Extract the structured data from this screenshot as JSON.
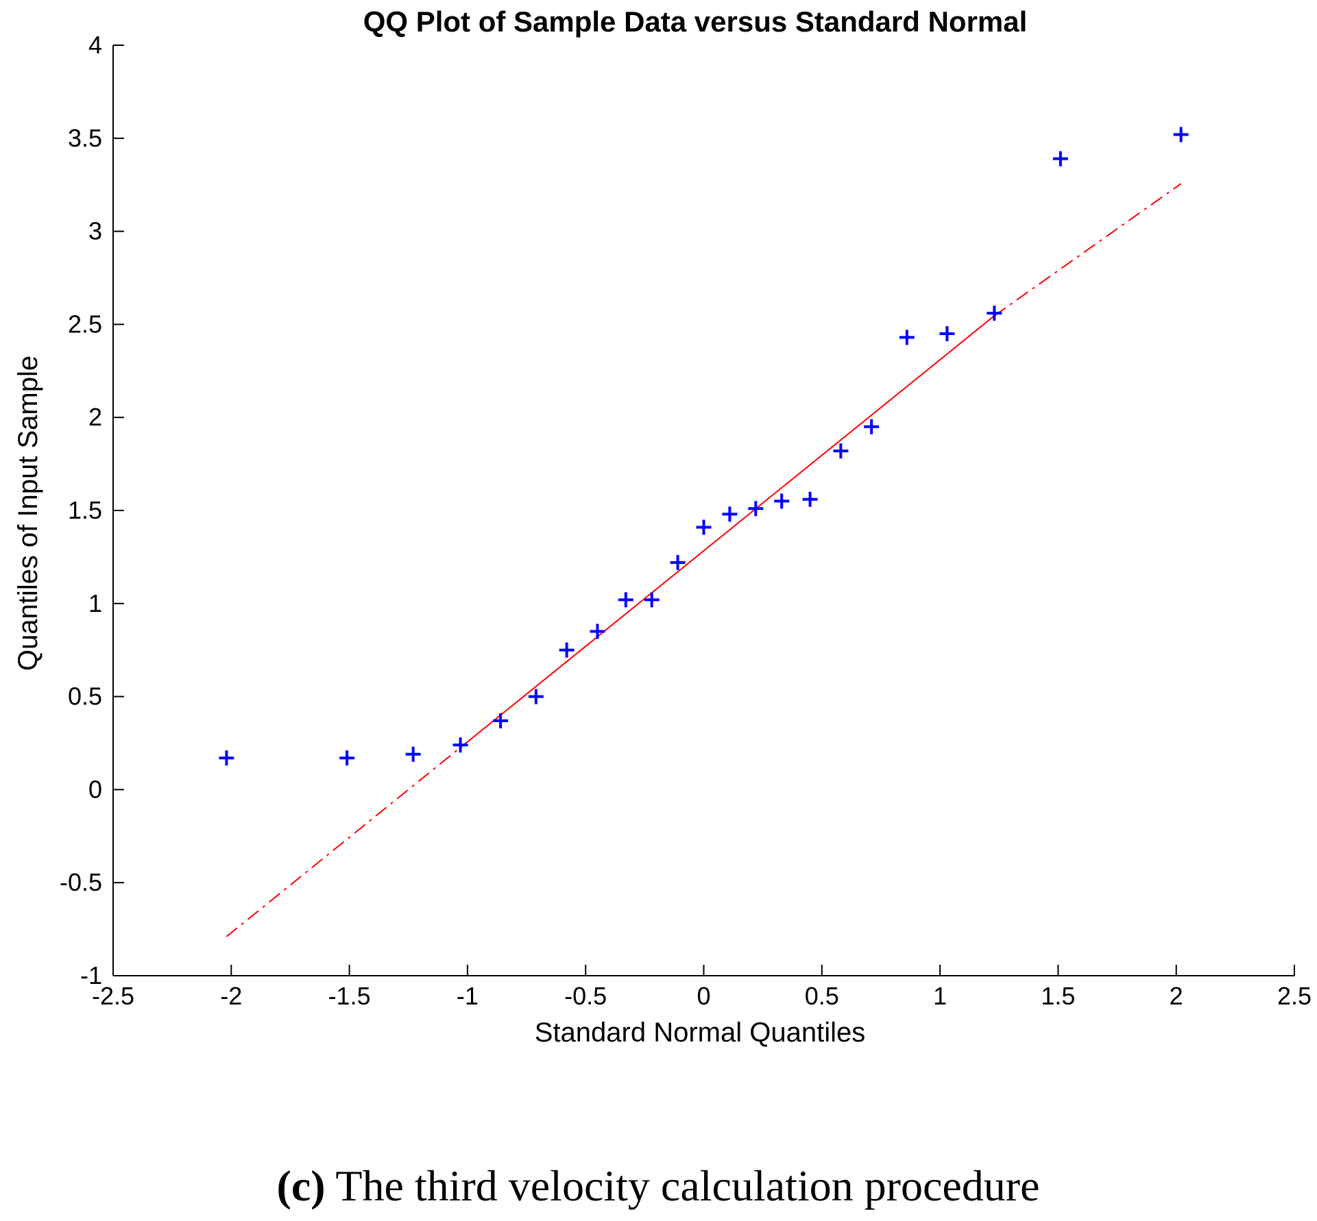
{
  "figure": {
    "caption_tag": "(c)",
    "caption_text": " The third velocity calculation procedure"
  },
  "chart_data": {
    "type": "scatter",
    "title": "QQ Plot of Sample Data versus Standard Normal",
    "xlabel": "Standard Normal Quantiles",
    "ylabel": "Quantiles of Input Sample",
    "xlim": [
      -2.5,
      2.5
    ],
    "ylim": [
      -1,
      4
    ],
    "xticks": [
      -2.5,
      -2,
      -1.5,
      -1,
      -0.5,
      0,
      0.5,
      1,
      1.5,
      2,
      2.5
    ],
    "xtick_labels": [
      "-2.5",
      "-2",
      "-1.5",
      "-1",
      "-0.5",
      "0",
      "0.5",
      "1",
      "1.5",
      "2",
      "2.5"
    ],
    "yticks": [
      -1,
      -0.5,
      0,
      0.5,
      1,
      1.5,
      2,
      2.5,
      3,
      3.5,
      4
    ],
    "ytick_labels": [
      "-1",
      "-0.5",
      "0",
      "0.5",
      "1",
      "1.5",
      "2",
      "2.5",
      "3",
      "3.5",
      "4"
    ],
    "grid": false,
    "series": [
      {
        "name": "Sample Data",
        "marker": "plus",
        "color": "#0000ff",
        "x": [
          -2.02,
          -1.51,
          -1.23,
          -1.03,
          -0.86,
          -0.71,
          -0.58,
          -0.45,
          -0.33,
          -0.22,
          -0.11,
          0.0,
          0.11,
          0.22,
          0.33,
          0.45,
          0.58,
          0.71,
          0.86,
          1.03,
          1.23,
          1.51,
          2.02
        ],
        "y": [
          0.17,
          0.17,
          0.19,
          0.24,
          0.37,
          0.5,
          0.75,
          0.85,
          1.02,
          1.02,
          1.22,
          1.41,
          1.48,
          1.51,
          1.55,
          1.56,
          1.82,
          1.95,
          2.43,
          2.45,
          2.56,
          3.39,
          3.52
        ]
      }
    ],
    "reference_line": {
      "name": "Fitted reference line",
      "color": "#ff0000",
      "solid_segment": {
        "x": [
          -1.03,
          1.23
        ],
        "y": [
          0.226,
          2.546
        ]
      },
      "dashdot_segments": [
        {
          "x": [
            -2.02,
            -1.03
          ],
          "y": [
            -0.79,
            0.226
          ]
        },
        {
          "x": [
            1.23,
            2.02
          ],
          "y": [
            2.546,
            3.256
          ]
        }
      ]
    }
  }
}
